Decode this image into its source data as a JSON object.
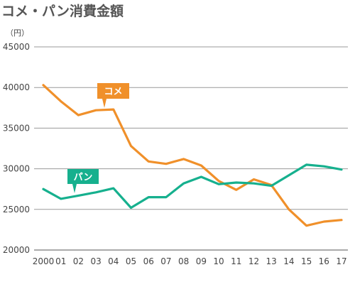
{
  "chart_data": {
    "type": "line",
    "title": "コメ・パン消費金額",
    "ylabel": "（円）",
    "xlabel": "",
    "categories": [
      "2000",
      "01",
      "02",
      "03",
      "04",
      "05",
      "06",
      "07",
      "08",
      "09",
      "10",
      "11",
      "12",
      "13",
      "14",
      "15",
      "16",
      "17"
    ],
    "ylim": [
      20000,
      45000
    ],
    "yticks": [
      20000,
      25000,
      30000,
      35000,
      40000,
      45000
    ],
    "grid": true,
    "series": [
      {
        "name": "コメ",
        "color": "#f0902a",
        "values": [
          40300,
          38300,
          36600,
          37200,
          37300,
          32800,
          30900,
          30600,
          31200,
          30400,
          28500,
          27400,
          28700,
          28000,
          25000,
          23000,
          23500,
          23700
        ]
      },
      {
        "name": "パン",
        "color": "#16b08e",
        "values": [
          27500,
          26300,
          26700,
          27100,
          27600,
          25200,
          26500,
          26500,
          28200,
          29000,
          28100,
          28300,
          28200,
          27900,
          29200,
          30500,
          30300,
          29900
        ]
      }
    ]
  }
}
